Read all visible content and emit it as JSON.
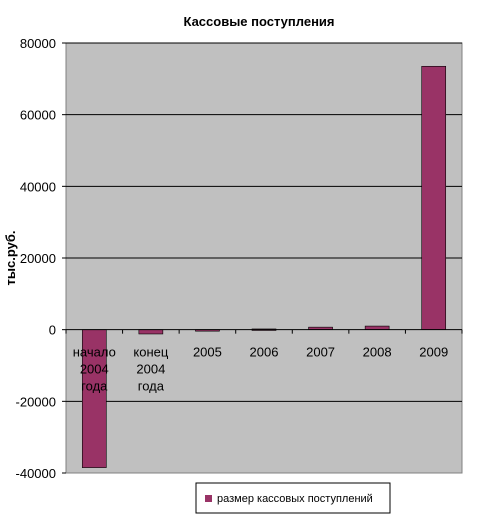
{
  "chart_data": {
    "type": "bar",
    "title": "Кассовые поступления",
    "ylabel": "тыс.руб.",
    "xlabel": "",
    "categories": [
      [
        "начало",
        "2004",
        "года"
      ],
      [
        "конец",
        "2004",
        "года"
      ],
      [
        "2005"
      ],
      [
        "2006"
      ],
      [
        "2007"
      ],
      [
        "2008"
      ],
      [
        "2009"
      ]
    ],
    "series": [
      {
        "name": "размер кассовых поступлений",
        "values": [
          -38500,
          -1200,
          -300,
          200,
          700,
          1000,
          73500
        ],
        "color": "#993366"
      }
    ],
    "ylim": [
      -40000,
      80000
    ],
    "yticks": [
      80000,
      60000,
      40000,
      20000,
      0,
      -20000,
      -40000
    ],
    "grid": true,
    "plot_background": "#c0c0c0",
    "legend": "bottom"
  }
}
